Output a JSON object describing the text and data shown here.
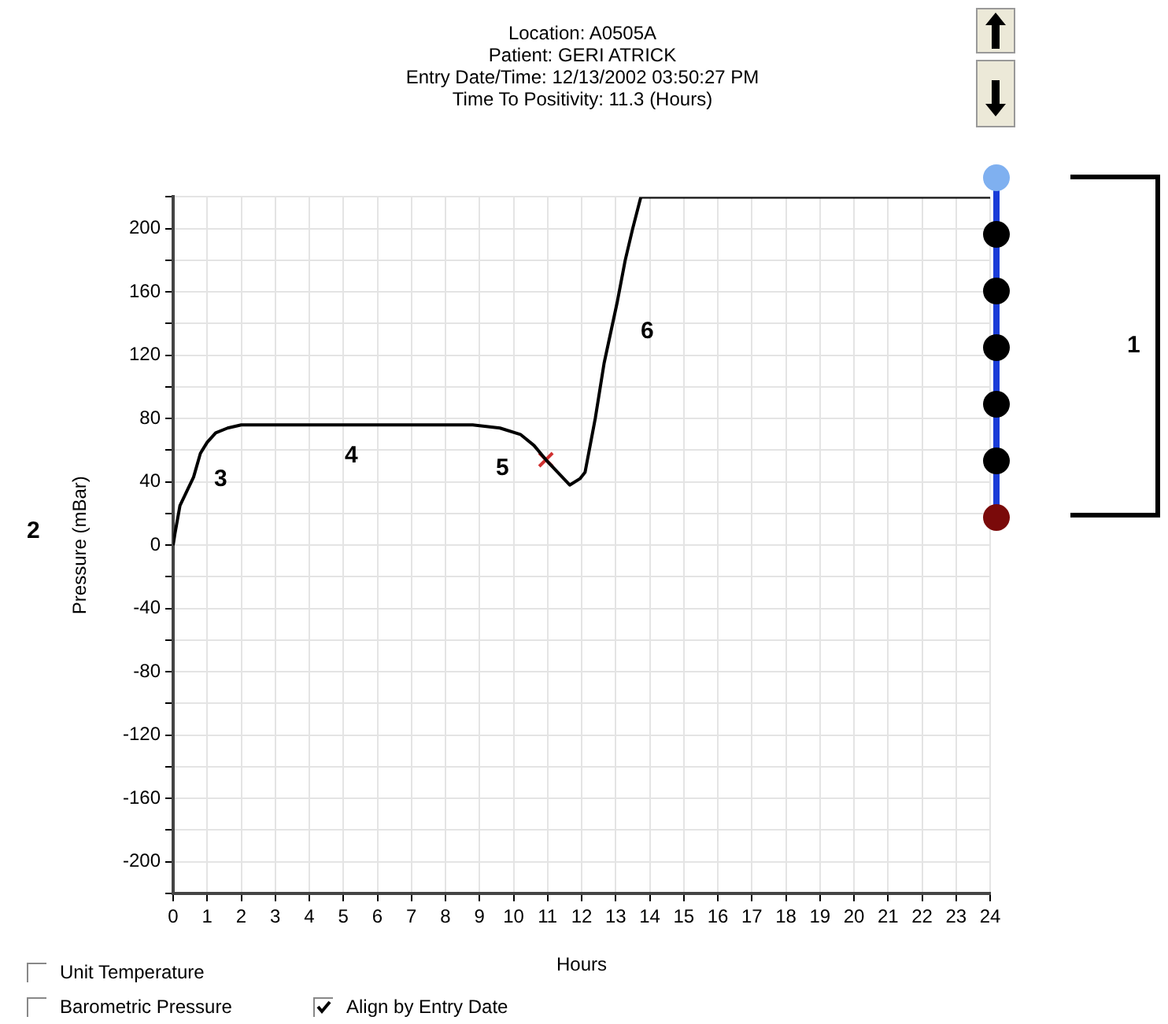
{
  "chart_data": {
    "type": "line",
    "title": "Location: A0505A",
    "subtitle": "Patient: GERI ATRICK\nEntry Date/Time: 12/13/2002 03:50:27 PM\nTime To Positivity: 11.3 (Hours)",
    "xlabel": "Hours",
    "ylabel": "Pressure (mBar)",
    "xlim": [
      0,
      24
    ],
    "xticks": [
      0,
      1,
      2,
      3,
      4,
      5,
      6,
      7,
      8,
      9,
      10,
      11,
      12,
      13,
      14,
      15,
      16,
      17,
      18,
      19,
      20,
      21,
      22,
      23,
      24
    ],
    "ylim": [
      -220,
      220
    ],
    "yticks": [
      {
        "value": -220,
        "label": null
      },
      -200,
      {
        "value": -180,
        "label": null
      },
      -160,
      {
        "value": -140,
        "label": null
      },
      -120,
      {
        "value": -100,
        "label": null
      },
      -80,
      {
        "value": -60,
        "label": null
      },
      -40,
      {
        "value": -20,
        "label": null
      },
      0,
      {
        "value": 20,
        "label": null
      },
      40,
      {
        "value": 60,
        "label": null
      },
      80,
      {
        "value": 100,
        "label": null
      },
      120,
      {
        "value": 140,
        "label": null
      },
      160,
      {
        "value": 180,
        "label": null
      },
      200,
      {
        "value": 220,
        "label": null
      }
    ],
    "grid": true,
    "legend": false,
    "series": [
      {
        "color": "#000000",
        "marker": "none",
        "x": [
          0,
          0.05,
          0.2,
          0.6,
          0.8,
          1.0,
          1.25,
          1.6,
          2.0,
          5,
          8.8,
          9.6,
          10.2,
          10.6,
          10.95,
          11.3,
          11.65,
          11.95,
          12.1,
          12.4,
          12.66,
          13.05,
          13.28,
          13.5,
          13.74,
          24
        ],
        "values": [
          0,
          7,
          25,
          43,
          58,
          65,
          71,
          74,
          76,
          76,
          76,
          74,
          70,
          63,
          54,
          46,
          38,
          42,
          46,
          80,
          115,
          154,
          180,
          200,
          220,
          220
        ]
      },
      {
        "type": "scatter",
        "color": "#d03030",
        "marker": "cross",
        "x": [
          10.95
        ],
        "values": [
          54
        ]
      }
    ],
    "annotations": [
      "3",
      "4",
      "5",
      "6",
      "1",
      "2",
      "Unit Temperature",
      "Barometric Pressure",
      "Align by Entry Date"
    ]
  }
}
